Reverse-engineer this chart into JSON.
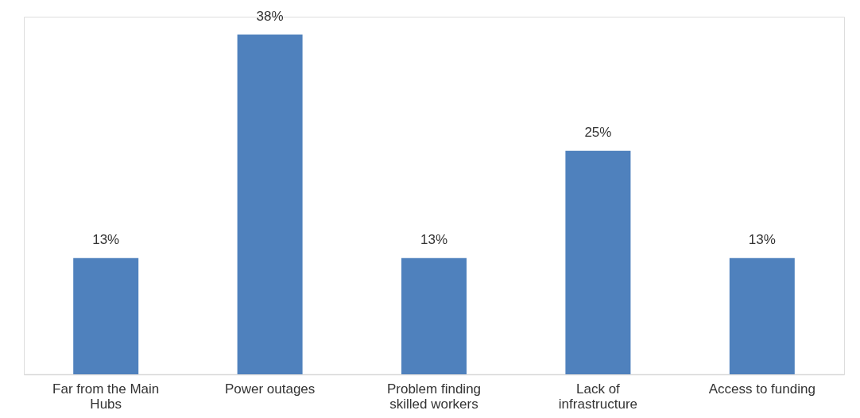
{
  "chart_data": {
    "type": "bar",
    "categories": [
      "Far from the Main Hubs",
      "Power outages",
      "Problem finding skilled workers",
      "Lack of infrastructure",
      "Access to funding"
    ],
    "values": [
      13,
      38,
      13,
      25,
      13
    ],
    "value_labels": [
      "13%",
      "38%",
      "13%",
      "25%",
      "13%"
    ],
    "color": "#4f81bd",
    "grid": false,
    "tick_labels": "x"
  }
}
